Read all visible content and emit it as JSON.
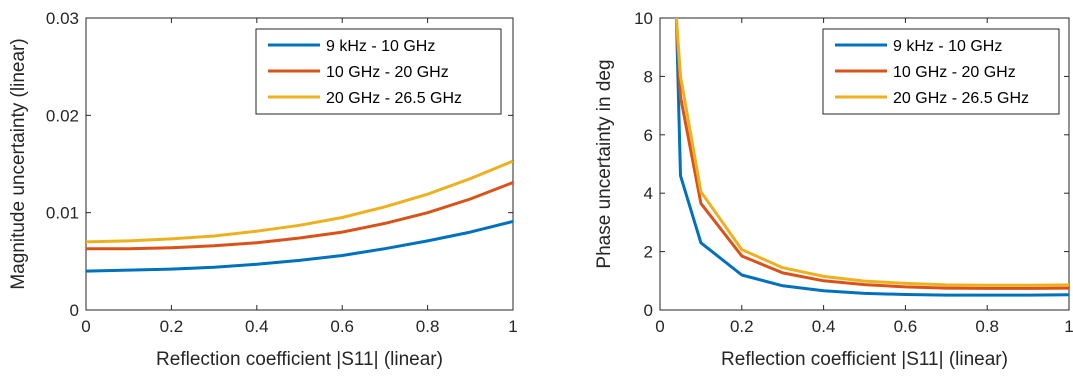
{
  "chart_data": [
    {
      "type": "line",
      "xlabel": "Reflection coefficient |S11| (linear)",
      "ylabel": "Magnitude uncertainty (linear)",
      "xlim": [
        0,
        1
      ],
      "ylim": [
        0,
        0.03
      ],
      "xticks": [
        "0",
        "0.2",
        "0.4",
        "0.6",
        "0.8",
        "1"
      ],
      "yticks": [
        "0",
        "0.01",
        "0.02",
        "0.03"
      ],
      "grid": false,
      "legend_position": "top-right",
      "x": [
        0,
        0.1,
        0.2,
        0.3,
        0.4,
        0.5,
        0.6,
        0.7,
        0.8,
        0.9,
        1.0
      ],
      "series": [
        {
          "name": "9 kHz - 10 GHz",
          "color": "#0072BD",
          "values": [
            0.004,
            0.0041,
            0.0042,
            0.0044,
            0.0047,
            0.0051,
            0.0056,
            0.0063,
            0.0071,
            0.008,
            0.0091
          ]
        },
        {
          "name": "10 GHz - 20 GHz",
          "color": "#D95319",
          "values": [
            0.0063,
            0.0063,
            0.0064,
            0.0066,
            0.0069,
            0.0074,
            0.008,
            0.0089,
            0.01,
            0.0114,
            0.0131
          ]
        },
        {
          "name": "20 GHz - 26.5 GHz",
          "color": "#EDB120",
          "values": [
            0.007,
            0.0071,
            0.0073,
            0.0076,
            0.0081,
            0.0087,
            0.0095,
            0.0106,
            0.0119,
            0.0135,
            0.0153
          ]
        }
      ]
    },
    {
      "type": "line",
      "xlabel": "Reflection coefficient |S11| (linear)",
      "ylabel": "Phase uncertainty in deg",
      "xlim": [
        0,
        1
      ],
      "ylim": [
        0,
        10
      ],
      "xticks": [
        "0",
        "0.2",
        "0.4",
        "0.6",
        "0.8",
        "1"
      ],
      "yticks": [
        "0",
        "2",
        "4",
        "6",
        "8",
        "10"
      ],
      "grid": false,
      "legend_position": "top-right",
      "x": [
        0.04,
        0.05,
        0.1,
        0.2,
        0.3,
        0.4,
        0.5,
        0.6,
        0.7,
        0.8,
        0.9,
        1.0
      ],
      "series": [
        {
          "name": "9 kHz - 10 GHz",
          "color": "#0072BD",
          "values": [
            10.0,
            4.6,
            2.3,
            1.2,
            0.83,
            0.66,
            0.57,
            0.53,
            0.51,
            0.51,
            0.51,
            0.52
          ]
        },
        {
          "name": "10 GHz - 20 GHz",
          "color": "#D95319",
          "values": [
            10.0,
            7.3,
            3.65,
            1.85,
            1.27,
            1.0,
            0.87,
            0.79,
            0.75,
            0.74,
            0.74,
            0.75
          ]
        },
        {
          "name": "20 GHz - 26.5 GHz",
          "color": "#EDB120",
          "values": [
            10.0,
            8.0,
            4.05,
            2.07,
            1.45,
            1.15,
            0.99,
            0.91,
            0.86,
            0.85,
            0.85,
            0.86
          ]
        }
      ]
    }
  ]
}
